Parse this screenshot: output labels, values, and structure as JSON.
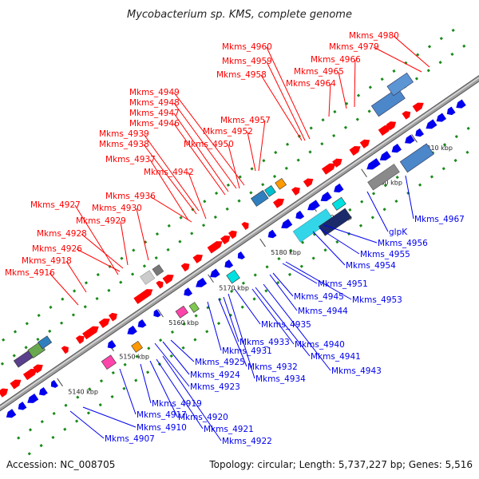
{
  "title": "Mycobacterium sp. KMS, complete genome",
  "footer": {
    "accession": "Accession: NC_008705",
    "summary": "Topology: circular; Length: 5,737,227 bp; Genes: 5,516"
  },
  "colors": {
    "forward_strand": "#ff0000",
    "reverse_strand": "#0000ee",
    "backbone": "#a0a0a0",
    "tick_dots": "#1a8a1a"
  },
  "kbp_ticks": [
    "5140 kbp",
    "5150 kbp",
    "5160 kbp",
    "5170 kbp",
    "5180 kbp",
    "5190 kbp",
    "5200 kbp",
    "5210 kbp"
  ],
  "forward_labels": [
    "Mkms_4916",
    "Mkms_4918",
    "Mkms_4926",
    "Mkms_4928",
    "Mkms_4929",
    "Mkms_4927",
    "Mkms_4930",
    "Mkms_4936",
    "Mkms_4937",
    "Mkms_4942",
    "Mkms_4938",
    "Mkms_4939",
    "Mkms_4946",
    "Mkms_4947",
    "Mkms_4948",
    "Mkms_4949",
    "Mkms_4950",
    "Mkms_4952",
    "Mkms_4957",
    "Mkms_4958",
    "Mkms_4959",
    "Mkms_4960",
    "Mkms_4964",
    "Mkms_4965",
    "Mkms_4966",
    "Mkms_4979",
    "Mkms_4980"
  ],
  "reverse_labels": [
    "Mkms_4907",
    "Mkms_4910",
    "Mkms_4917",
    "Mkms_4919",
    "Mkms_4920",
    "Mkms_4921",
    "Mkms_4922",
    "Mkms_4923",
    "Mkms_4924",
    "Mkms_4925",
    "Mkms_4931",
    "Mkms_4932",
    "Mkms_4933",
    "Mkms_4934",
    "Mkms_4935",
    "Mkms_4940",
    "Mkms_4941",
    "Mkms_4943",
    "Mkms_4944",
    "Mkms_4945",
    "Mkms_4951",
    "Mkms_4953",
    "Mkms_4954",
    "Mkms_4955",
    "Mkms_4956",
    "glpK",
    "Mkms_4967"
  ]
}
